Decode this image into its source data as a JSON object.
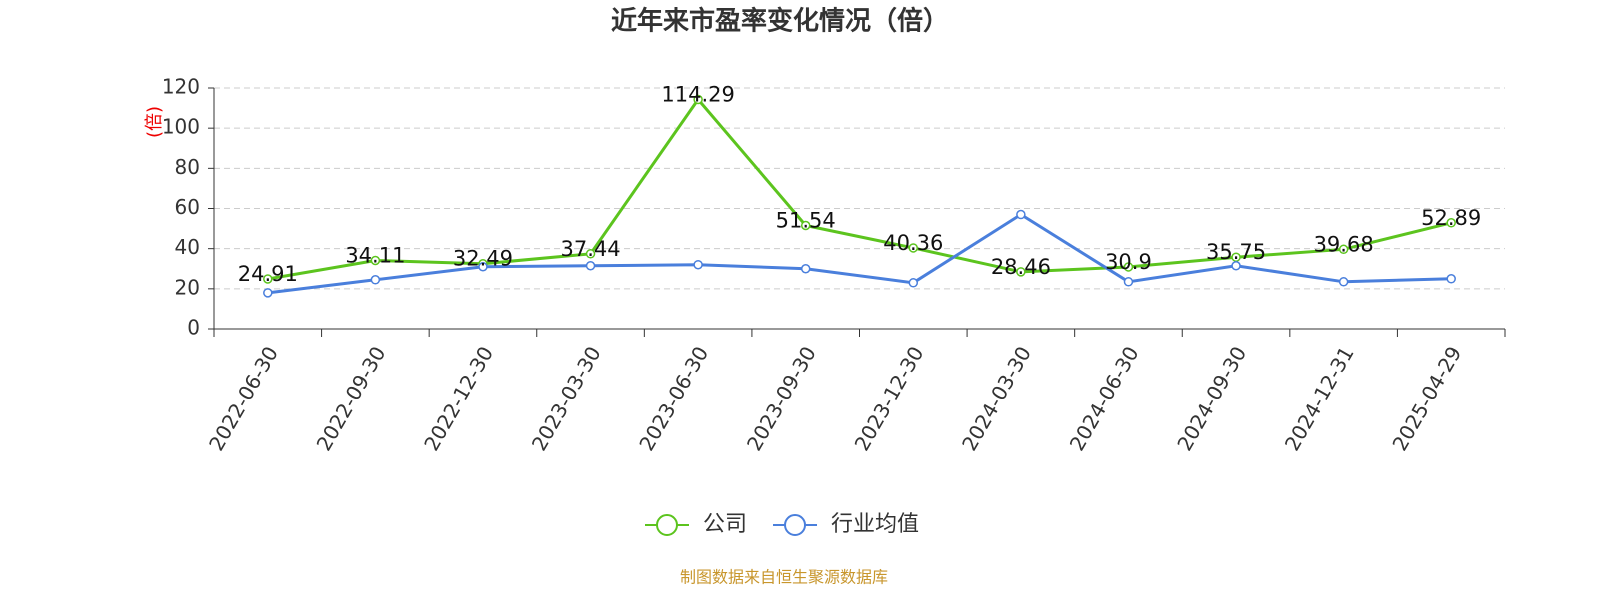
{
  "chart_data": {
    "type": "line",
    "title": "近年来市盈率变化情况（倍）",
    "y_label": "(倍)",
    "source": "制图数据来自恒生聚源数据库",
    "categories": [
      "2022-06-30",
      "2022-09-30",
      "2022-12-30",
      "2023-03-30",
      "2023-06-30",
      "2023-09-30",
      "2023-12-30",
      "2024-03-30",
      "2024-06-30",
      "2024-09-30",
      "2024-12-31",
      "2025-04-29"
    ],
    "series": [
      {
        "name": "公司",
        "color": "#5cc41e",
        "values": [
          24.91,
          34.11,
          32.49,
          37.44,
          114.29,
          51.54,
          40.36,
          28.46,
          30.9,
          35.75,
          39.68,
          52.89
        ],
        "show_labels": true
      },
      {
        "name": "行业均值",
        "color": "#4a7fdc",
        "values": [
          18,
          24.5,
          31,
          31.5,
          32,
          30,
          23,
          57,
          23.5,
          31.5,
          23.5,
          25
        ],
        "show_labels": false
      }
    ],
    "ylim": [
      0,
      120
    ],
    "yticks": [
      0,
      20,
      40,
      60,
      80,
      100,
      120
    ],
    "grid": true
  }
}
